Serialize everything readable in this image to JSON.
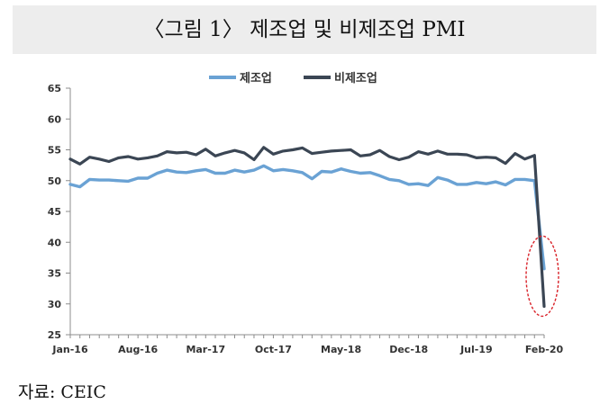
{
  "title": "〈그림 1〉 제조업 및 비제조업 PMI",
  "source": "자료: CEIC",
  "chart_data": {
    "type": "line",
    "title": "〈그림 1〉 제조업 및 비제조업 PMI",
    "xlabel": "",
    "ylabel": "",
    "ylim": [
      25,
      65
    ],
    "yticks": [
      25,
      30,
      35,
      40,
      45,
      50,
      55,
      60,
      65
    ],
    "grid": false,
    "legend_position": "top-center",
    "x_tick_labels": [
      "Jan-16",
      "Aug-16",
      "Mar-17",
      "Oct-17",
      "May-18",
      "Dec-18",
      "Jul-19",
      "Feb-20"
    ],
    "x": [
      "2016-01",
      "2016-02",
      "2016-03",
      "2016-04",
      "2016-05",
      "2016-06",
      "2016-07",
      "2016-08",
      "2016-09",
      "2016-10",
      "2016-11",
      "2016-12",
      "2017-01",
      "2017-02",
      "2017-03",
      "2017-04",
      "2017-05",
      "2017-06",
      "2017-07",
      "2017-08",
      "2017-09",
      "2017-10",
      "2017-11",
      "2017-12",
      "2018-01",
      "2018-02",
      "2018-03",
      "2018-04",
      "2018-05",
      "2018-06",
      "2018-07",
      "2018-08",
      "2018-09",
      "2018-10",
      "2018-11",
      "2018-12",
      "2019-01",
      "2019-02",
      "2019-03",
      "2019-04",
      "2019-05",
      "2019-06",
      "2019-07",
      "2019-08",
      "2019-09",
      "2019-10",
      "2019-11",
      "2019-12",
      "2020-01",
      "2020-02"
    ],
    "series": [
      {
        "name": "제조업",
        "color": "#6aa2d4",
        "values": [
          49.4,
          49.0,
          50.2,
          50.1,
          50.1,
          50.0,
          49.9,
          50.4,
          50.4,
          51.2,
          51.7,
          51.4,
          51.3,
          51.6,
          51.8,
          51.2,
          51.2,
          51.7,
          51.4,
          51.7,
          52.4,
          51.6,
          51.8,
          51.6,
          51.3,
          50.3,
          51.5,
          51.4,
          51.9,
          51.5,
          51.2,
          51.3,
          50.8,
          50.2,
          50.0,
          49.4,
          49.5,
          49.2,
          50.5,
          50.1,
          49.4,
          49.4,
          49.7,
          49.5,
          49.8,
          49.3,
          50.2,
          50.2,
          50.0,
          35.7
        ]
      },
      {
        "name": "비제조업",
        "color": "#3b4654",
        "values": [
          53.5,
          52.7,
          53.8,
          53.5,
          53.1,
          53.7,
          53.9,
          53.5,
          53.7,
          54.0,
          54.7,
          54.5,
          54.6,
          54.2,
          55.1,
          54.0,
          54.5,
          54.9,
          54.5,
          53.4,
          55.4,
          54.3,
          54.8,
          55.0,
          55.3,
          54.4,
          54.6,
          54.8,
          54.9,
          55.0,
          54.0,
          54.2,
          54.9,
          53.9,
          53.4,
          53.8,
          54.7,
          54.3,
          54.8,
          54.3,
          54.3,
          54.2,
          53.7,
          53.8,
          53.7,
          52.8,
          54.4,
          53.5,
          54.1,
          29.6
        ]
      }
    ],
    "annotations": [
      {
        "type": "dashed-ellipse",
        "color": "#d9232a",
        "x": "2020-02",
        "y_range": [
          28,
          41
        ]
      }
    ]
  }
}
